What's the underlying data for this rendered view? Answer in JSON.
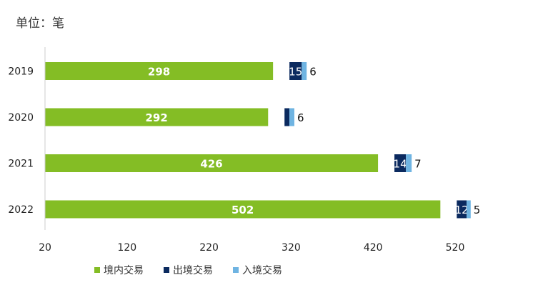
{
  "unit_label": "单位：笔",
  "chart_data": {
    "type": "bar",
    "orientation": "horizontal",
    "stacked": true,
    "categories": [
      "2019",
      "2020",
      "2021",
      "2022"
    ],
    "series": [
      {
        "name": "境内交易",
        "color": "#84bd25",
        "values": [
          298,
          292,
          426,
          502
        ]
      },
      {
        "name": "出境交易",
        "color": "#0b2a5f",
        "values": [
          15,
          6,
          14,
          12
        ]
      },
      {
        "name": "入境交易",
        "color": "#6fb4e2",
        "values": [
          6,
          6,
          7,
          5
        ]
      }
    ],
    "xlim": [
      20,
      520
    ],
    "xticks": [
      20,
      120,
      220,
      320,
      420,
      520
    ],
    "grid": false,
    "legend": "bottom"
  }
}
